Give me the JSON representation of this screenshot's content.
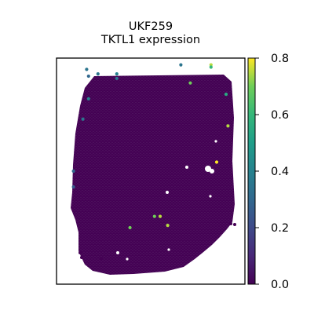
{
  "chart_data": {
    "type": "scatter",
    "title_line1": "UKF259",
    "title_line2": "TKTL1 expression",
    "xlabel": "",
    "ylabel": "",
    "colormap": "viridis",
    "color_range": [
      0,
      0.8
    ],
    "colorbar_ticks": [
      "0.0",
      "0.2",
      "0.4",
      "0.6",
      "0.8"
    ],
    "grid": false,
    "tissue_background_value": 0.0,
    "tissue_background_color": "#440154",
    "highlighted_spots": [
      {
        "x": 0.16,
        "y": 0.95,
        "value": 0.35
      },
      {
        "x": 0.17,
        "y": 0.92,
        "value": 0.3
      },
      {
        "x": 0.22,
        "y": 0.93,
        "value": 0.35
      },
      {
        "x": 0.32,
        "y": 0.93,
        "value": 0.4
      },
      {
        "x": 0.32,
        "y": 0.91,
        "value": 0.35
      },
      {
        "x": 0.66,
        "y": 0.97,
        "value": 0.35
      },
      {
        "x": 0.82,
        "y": 0.97,
        "value": 0.75
      },
      {
        "x": 0.82,
        "y": 0.96,
        "value": 0.6
      },
      {
        "x": 0.71,
        "y": 0.89,
        "value": 0.7
      },
      {
        "x": 0.9,
        "y": 0.84,
        "value": 0.55
      },
      {
        "x": 0.17,
        "y": 0.82,
        "value": 0.4
      },
      {
        "x": 0.14,
        "y": 0.73,
        "value": 0.35
      },
      {
        "x": 0.91,
        "y": 0.7,
        "value": 0.75
      },
      {
        "x": 0.85,
        "y": 0.54,
        "value": 0.8
      },
      {
        "x": 0.09,
        "y": 0.5,
        "value": 0.3
      },
      {
        "x": 0.09,
        "y": 0.43,
        "value": 0.25
      },
      {
        "x": 0.55,
        "y": 0.3,
        "value": 0.75
      },
      {
        "x": 0.52,
        "y": 0.3,
        "value": 0.7
      },
      {
        "x": 0.59,
        "y": 0.26,
        "value": 0.75
      },
      {
        "x": 0.39,
        "y": 0.25,
        "value": 0.7
      }
    ]
  }
}
